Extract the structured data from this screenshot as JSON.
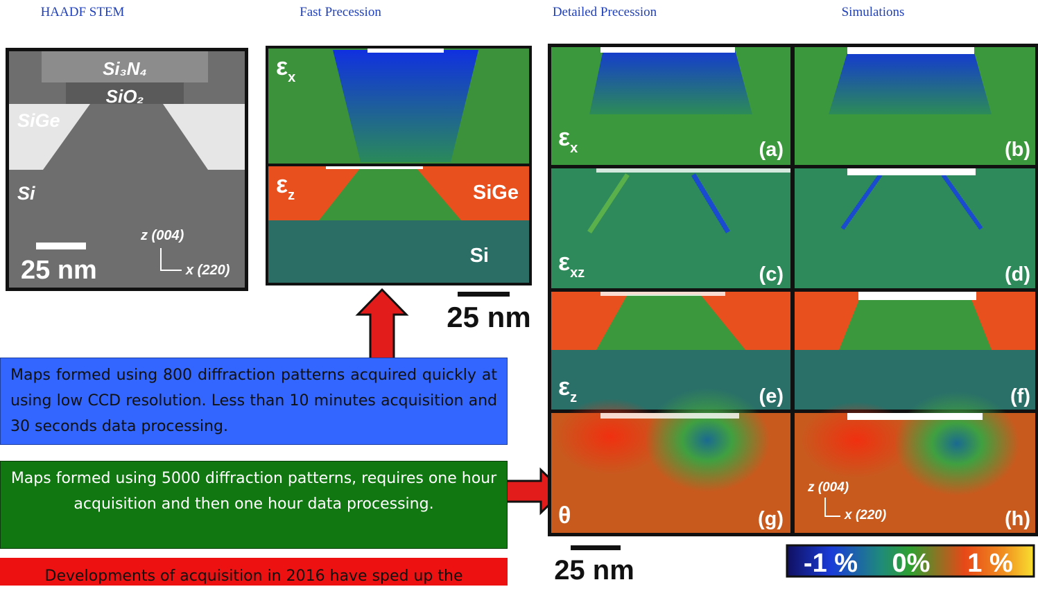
{
  "headers": [
    "HAADF STEM",
    "Fast Precession",
    "Detailed Precession",
    "Simulations"
  ],
  "haadf_stem": {
    "labels": [
      "Si₃N₄",
      "SiO₂",
      "SiGe",
      "Si"
    ],
    "scale_bar": "25 nm",
    "axes": [
      "z (004)",
      "x (220)"
    ]
  },
  "fast_precession": {
    "panels": [
      {
        "symbol": "ε",
        "subscript": "x"
      },
      {
        "symbol": "ε",
        "subscript": "z"
      }
    ],
    "labels": [
      "SiGe",
      "Si"
    ],
    "scale_bar": "25 nm"
  },
  "detailed_precession": {
    "panels": [
      {
        "symbol": "ε",
        "subscript": "x",
        "letter": "(a)"
      },
      {
        "symbol": "ε",
        "subscript": "xz",
        "letter": "(c)"
      },
      {
        "symbol": "ε",
        "subscript": "z",
        "letter": "(e)"
      },
      {
        "symbol": "θ",
        "letter": "(g)"
      }
    ],
    "simulation_letters": [
      "(b)",
      "(d)",
      "(f)",
      "(h)"
    ],
    "axes": [
      "z (004)",
      "x (220)"
    ],
    "scale_bar": "25 nm",
    "colorbar": [
      "-1 %",
      "0%",
      "1 %"
    ]
  },
  "notes": [
    "Maps formed using 800 diffraction patterns acquired quickly at using low CCD resolution.  Less than 10 minutes acquisition and 30 seconds data processing.",
    "Maps formed using 5000 diffraction patterns, requires one hour acquisition and then one hour data processing.",
    "Developments of acquisition in 2016 have sped up the"
  ]
}
